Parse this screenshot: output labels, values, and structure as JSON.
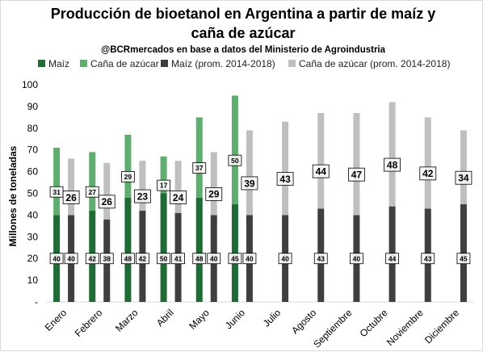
{
  "chart_data": {
    "type": "bar",
    "title_lines": [
      "Producción de bioetanol en Argentina a partir de maíz y",
      "caña de azúcar"
    ],
    "subtitle": "@BCRmercados en base a datos del Ministerio de Agroindustria",
    "ylabel": "Millones de toneladas",
    "ylim": [
      0,
      100
    ],
    "yticks": [
      "-",
      "10",
      "20",
      "30",
      "40",
      "50",
      "60",
      "70",
      "80",
      "90",
      "100"
    ],
    "legend_position": "top",
    "categories": [
      "Enero",
      "Febrero",
      "Marzo",
      "Abril",
      "Mayo",
      "Junio",
      "Julio",
      "Agosto",
      "Septiembre",
      "Octubre",
      "Noviembre",
      "Diciembre"
    ],
    "series": [
      {
        "name": "Maíz",
        "stack": "2019",
        "color": "#1e6b35",
        "values": [
          40,
          42,
          48,
          50,
          48,
          45,
          null,
          null,
          null,
          null,
          null,
          null
        ]
      },
      {
        "name": "Caña de azúcar",
        "stack": "2019",
        "color": "#5fad6f",
        "values": [
          31,
          27,
          29,
          17,
          37,
          50,
          null,
          null,
          null,
          null,
          null,
          null
        ]
      },
      {
        "name": "Maíz (prom. 2014-2018)",
        "stack": "prom",
        "color": "#3f3f3f",
        "values": [
          40,
          38,
          42,
          41,
          40,
          40,
          40,
          43,
          40,
          44,
          43,
          45
        ]
      },
      {
        "name": "Caña de azúcar (prom. 2014-2018)",
        "stack": "prom",
        "color": "#bfbfbf",
        "values": [
          26,
          26,
          23,
          24,
          29,
          39,
          43,
          44,
          47,
          48,
          42,
          34
        ]
      }
    ]
  }
}
